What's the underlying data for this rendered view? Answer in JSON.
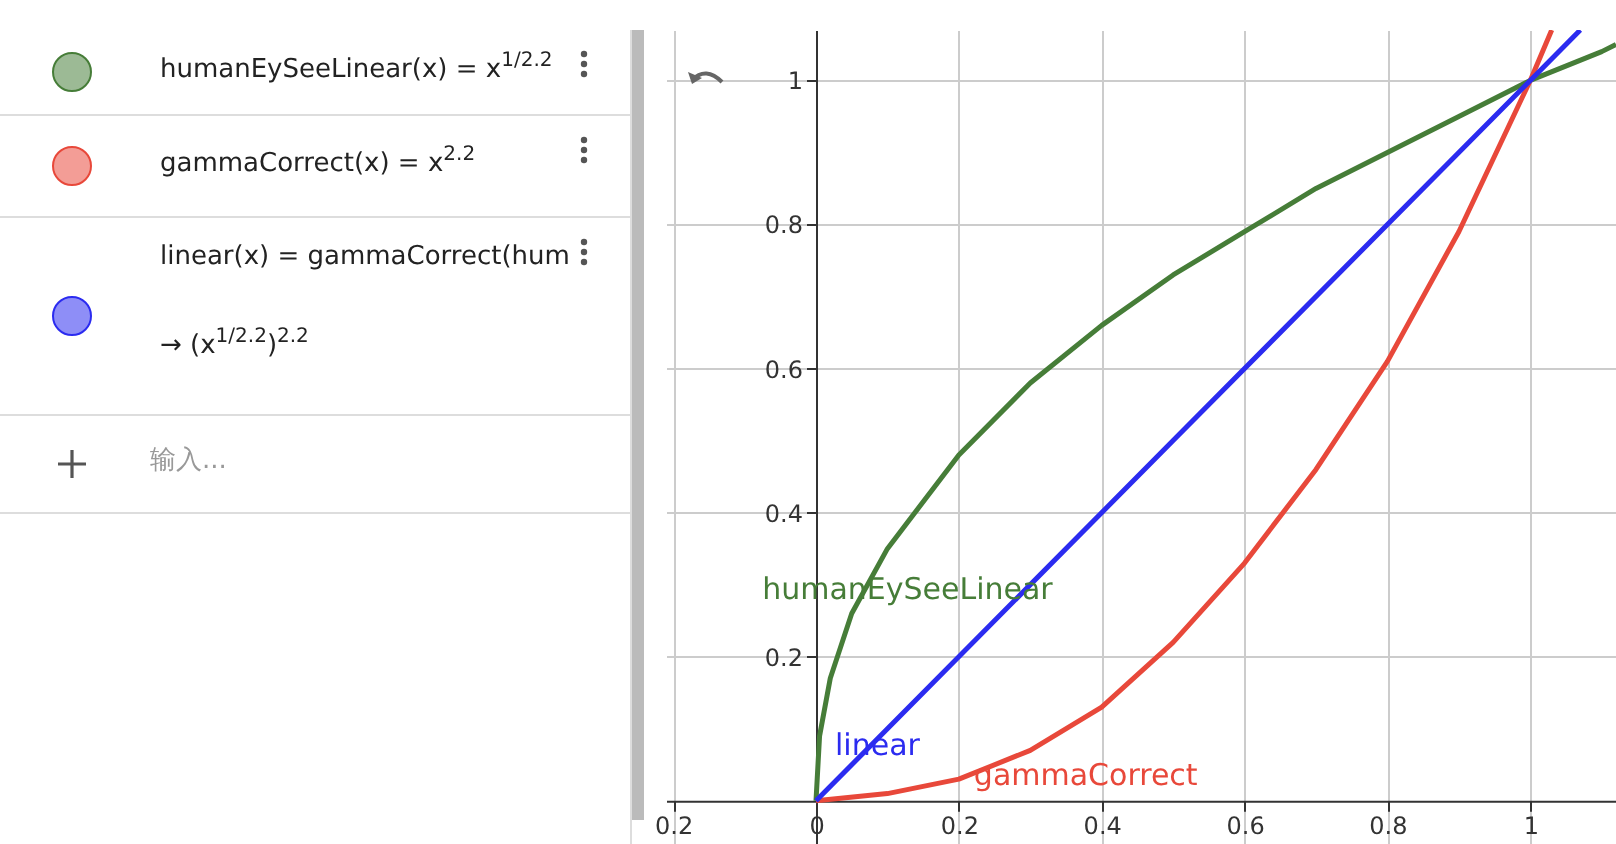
{
  "chart_data": [
    {
      "type": "other",
      "annotations": [
        "humanEySeeLinear(x) = x$^{1/2.2}$",
        "gammaCorrect(x) = x$^{2.2}$",
        "linear(x) = gammaCorrect(hum",
        "→ (x$^{1/2.2}$)$^{2.2}$",
        "输入..."
      ]
    },
    {
      "type": "line",
      "xlim": [
        -0.21,
        1.12
      ],
      "ylim": [
        -0.06,
        1.07
      ],
      "xticks": [
        {
          "value": -0.2,
          "label": "0.2"
        },
        0,
        0.2,
        0.4,
        0.6,
        0.8,
        1
      ],
      "yticks": [
        0.2,
        0.4,
        0.6,
        0.8,
        1
      ],
      "grid": true,
      "marker": "none",
      "line_style": "solid",
      "series": [
        {
          "name": "humanEySeeLinear",
          "color": "#467d38",
          "x": [
            0,
            0.005,
            0.02,
            0.05,
            0.1,
            0.2,
            0.3,
            0.4,
            0.5,
            0.6,
            0.7,
            0.8,
            0.9,
            1,
            1.1,
            1.12
          ],
          "values": [
            0,
            0.09,
            0.17,
            0.26,
            0.35,
            0.48,
            0.58,
            0.66,
            0.73,
            0.79,
            0.85,
            0.9,
            0.95,
            1,
            1.04,
            1.05
          ]
        },
        {
          "name": "gammaCorrect",
          "color": "#e8483a",
          "x": [
            0,
            0.1,
            0.2,
            0.3,
            0.4,
            0.5,
            0.6,
            0.7,
            0.8,
            0.9,
            1,
            1.03
          ],
          "values": [
            0,
            0.01,
            0.03,
            0.07,
            0.13,
            0.22,
            0.33,
            0.46,
            0.61,
            0.79,
            1,
            1.07
          ]
        },
        {
          "name": "linear",
          "color": "#2b2bf0",
          "x": [
            0,
            0.1,
            0.5,
            1,
            1.07
          ],
          "values": [
            0,
            0.1,
            0.5,
            1,
            1.07
          ]
        }
      ]
    }
  ]
}
